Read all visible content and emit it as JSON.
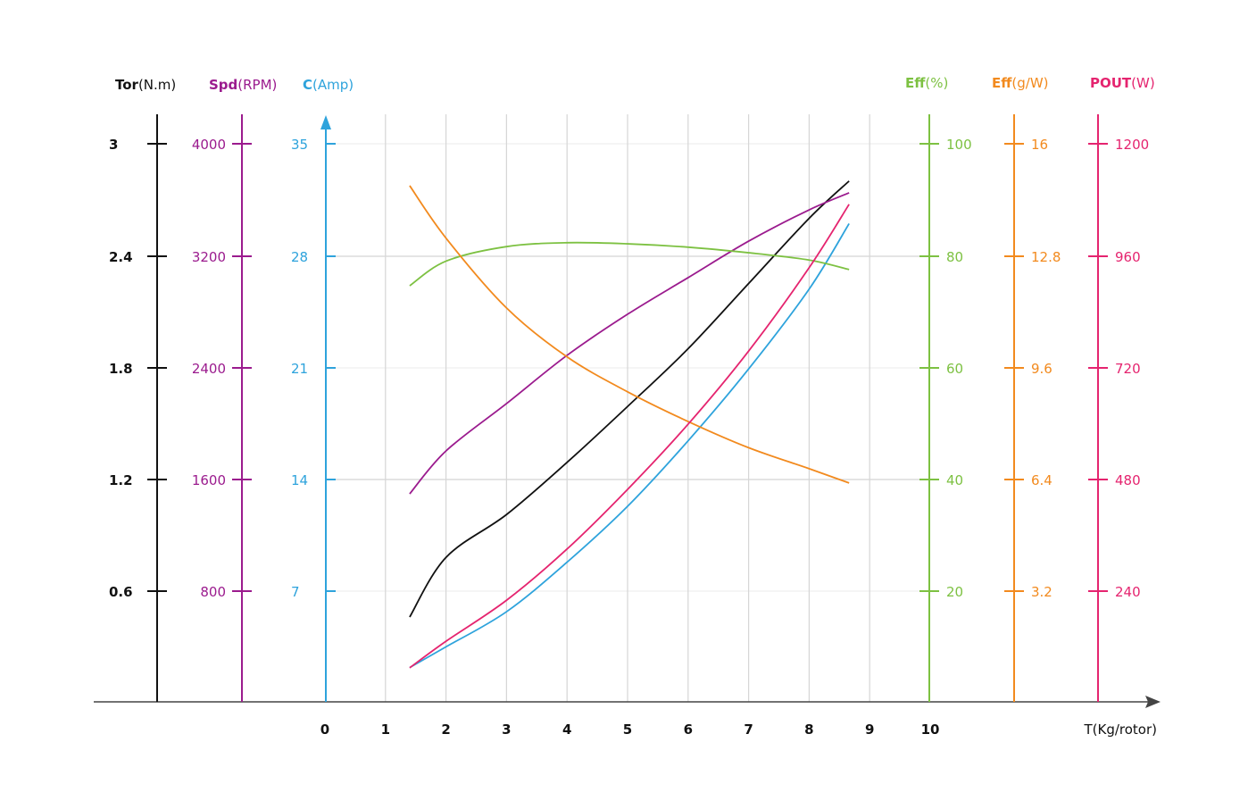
{
  "chart_data": {
    "type": "line",
    "xlabel": "T(Kg/rotor)",
    "x_ticks": [
      "0",
      "1",
      "2",
      "3",
      "4",
      "5",
      "6",
      "7",
      "8",
      "9",
      "10"
    ],
    "xlim": [
      0,
      10
    ],
    "grid": true,
    "axes": [
      {
        "key": "tor",
        "label_bold": "Tor",
        "label_unit": "(N.m)",
        "color": "#111111",
        "side": "left",
        "max": 3,
        "ticks": [
          "3",
          "2.4",
          "1.8",
          "1.2",
          "0.6"
        ]
      },
      {
        "key": "spd",
        "label_bold": "Spd",
        "label_unit": "(RPM)",
        "color": "#9b1b8e",
        "side": "left",
        "max": 4000,
        "ticks": [
          "4000",
          "3200",
          "2400",
          "1600",
          "800"
        ]
      },
      {
        "key": "c",
        "label_bold": "C",
        "label_unit": "(Amp)",
        "color": "#2ea3dc",
        "side": "left",
        "max": 35,
        "ticks": [
          "35",
          "28",
          "21",
          "14",
          "7"
        ]
      },
      {
        "key": "effp",
        "label_bold": "Eff",
        "label_unit": "(%)",
        "color": "#7dc142",
        "side": "right",
        "max": 100,
        "ticks": [
          "100",
          "80",
          "60",
          "40",
          "20"
        ]
      },
      {
        "key": "effg",
        "label_bold": "Eff",
        "label_unit": "(g/W)",
        "color": "#f28a1e",
        "side": "right",
        "max": 16,
        "ticks": [
          "16",
          "12.8",
          "9.6",
          "6.4",
          "3.2"
        ]
      },
      {
        "key": "pout",
        "label_bold": "POUT",
        "label_unit": "(W)",
        "color": "#e5246f",
        "side": "right",
        "max": 1200,
        "ticks": [
          "1200",
          "960",
          "720",
          "480",
          "240"
        ]
      }
    ],
    "x": [
      1.4,
      2,
      3,
      4,
      5,
      6,
      7,
      8,
      8.66
    ],
    "series": [
      {
        "axis": "tor",
        "values": [
          0.46,
          0.78,
          1.01,
          1.29,
          1.59,
          1.9,
          2.25,
          2.6,
          2.8
        ]
      },
      {
        "axis": "spd",
        "values": [
          1495,
          1802,
          2141,
          2486,
          2780,
          3042,
          3303,
          3527,
          3649
        ]
      },
      {
        "axis": "c",
        "values": [
          2.2,
          3.5,
          5.7,
          8.8,
          12.3,
          16.4,
          20.9,
          25.9,
          30.0
        ]
      },
      {
        "axis": "effp",
        "values": [
          74.6,
          79,
          81.6,
          82.3,
          82.1,
          81.5,
          80.5,
          79.2,
          77.5
        ]
      },
      {
        "axis": "effg",
        "values": [
          14.8,
          13.3,
          11.3,
          9.9,
          8.9,
          8.05,
          7.3,
          6.7,
          6.29
        ]
      },
      {
        "axis": "pout",
        "values": [
          75,
          132,
          220,
          330,
          458,
          598,
          755,
          934,
          1070
        ]
      }
    ]
  }
}
